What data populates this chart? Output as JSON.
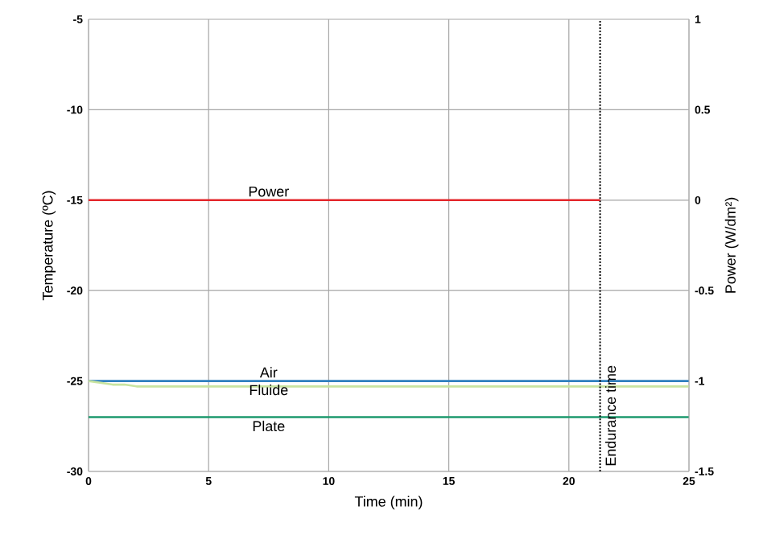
{
  "chart_data": {
    "type": "line",
    "xlabel": "Time (min)",
    "ylabel": "Temperature (ºC)",
    "y2label": "Power (W/dm²)",
    "xlim": [
      0,
      25
    ],
    "xticks": [
      0,
      5,
      10,
      15,
      20,
      25
    ],
    "ylim": [
      -30,
      -5
    ],
    "yticks": [
      -30,
      -25,
      -20,
      -15,
      -10,
      -5
    ],
    "y2lim": [
      -1.5,
      1
    ],
    "y2ticks": [
      -1.5,
      -1,
      -0.5,
      0,
      0.5,
      1
    ],
    "grid": true,
    "marker": "none",
    "line_style": "solid",
    "series": [
      {
        "name": "Power",
        "color": "#e3262b",
        "axis": "y2",
        "x": [
          0,
          21.3
        ],
        "values": [
          0,
          0
        ]
      },
      {
        "name": "Air",
        "color": "#2f7fbf",
        "x": [
          0,
          25
        ],
        "values": [
          -25,
          -25
        ]
      },
      {
        "name": "Fluide",
        "color": "#c8e4a0",
        "x": [
          0,
          0.5,
          1,
          1.5,
          2,
          5,
          10,
          15,
          20,
          25
        ],
        "values": [
          -25,
          -25.1,
          -25.2,
          -25.2,
          -25.3,
          -25.3,
          -25.3,
          -25.3,
          -25.3,
          -25.3
        ]
      },
      {
        "name": "Plate",
        "color": "#1e9a6e",
        "x": [
          0,
          25
        ],
        "values": [
          -27,
          -27
        ]
      }
    ],
    "ref_lines": [
      {
        "axis": "x",
        "value": 21.3,
        "label": "Endurance time",
        "line_style": "dotted"
      }
    ]
  }
}
